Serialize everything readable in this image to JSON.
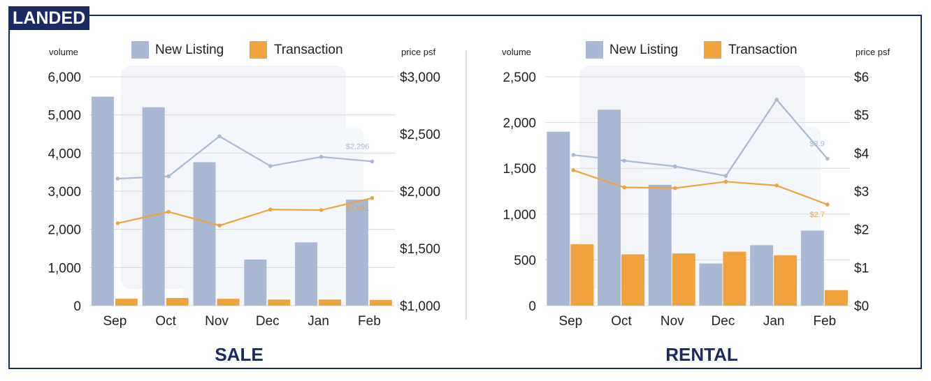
{
  "tag": "LANDED",
  "colors": {
    "new_listing": "#a9b9d3",
    "transaction": "#f0a23e",
    "navy": "#1b2a63"
  },
  "chart_data": [
    {
      "type": "bar",
      "title": "SALE",
      "categories": [
        "Sep",
        "Oct",
        "Nov",
        "Dec",
        "Jan",
        "Feb"
      ],
      "ylabel": "volume",
      "y2label": "price psf",
      "ylim": [
        0,
        6000
      ],
      "yticks": [
        "0",
        "1,000",
        "2,000",
        "3,000",
        "4,000",
        "5,000",
        "6,000"
      ],
      "y2lim": [
        1000,
        3000
      ],
      "y2ticks": [
        "$1,000",
        "$1,500",
        "$2,000",
        "$2,500",
        "$3,000"
      ],
      "legend": [
        "New Listing",
        "Transaction"
      ],
      "legend_position": "top",
      "series": [
        {
          "name": "New Listing",
          "kind": "bar",
          "axis": "left",
          "values": [
            5480,
            5200,
            3760,
            1210,
            1660,
            2780
          ]
        },
        {
          "name": "Transaction",
          "kind": "bar",
          "axis": "left",
          "values": [
            180,
            200,
            180,
            160,
            160,
            150
          ]
        },
        {
          "name": "New Listing",
          "kind": "line",
          "axis": "right",
          "values": [
            2110,
            2130,
            2480,
            2220,
            2300,
            2260
          ],
          "end_label": "$2,296"
        },
        {
          "name": "Transaction",
          "kind": "line",
          "axis": "right",
          "values": [
            1720,
            1820,
            1700,
            1840,
            1835,
            1940
          ],
          "end_label": "$1,951"
        }
      ]
    },
    {
      "type": "bar",
      "title": "RENTAL",
      "categories": [
        "Sep",
        "Oct",
        "Nov",
        "Dec",
        "Jan",
        "Feb"
      ],
      "ylabel": "volume",
      "y2label": "price psf",
      "ylim": [
        0,
        2500
      ],
      "yticks": [
        "0",
        "500",
        "1,000",
        "1,500",
        "2,000",
        "2,500"
      ],
      "y2lim": [
        0,
        6
      ],
      "y2ticks": [
        "$0",
        "$1",
        "$2",
        "$3",
        "$4",
        "$5",
        "$6"
      ],
      "legend": [
        "New Listing",
        "Transaction"
      ],
      "legend_position": "top",
      "series": [
        {
          "name": "New Listing",
          "kind": "bar",
          "axis": "left",
          "values": [
            1900,
            2140,
            1320,
            460,
            660,
            820
          ]
        },
        {
          "name": "Transaction",
          "kind": "bar",
          "axis": "left",
          "values": [
            670,
            560,
            570,
            590,
            550,
            170
          ]
        },
        {
          "name": "New Listing",
          "kind": "line",
          "axis": "right",
          "values": [
            3.95,
            3.8,
            3.65,
            3.4,
            5.4,
            3.85
          ],
          "end_label": "$3.9"
        },
        {
          "name": "Transaction",
          "kind": "line",
          "axis": "right",
          "values": [
            3.55,
            3.1,
            3.08,
            3.25,
            3.15,
            2.65
          ],
          "end_label": "$2.7"
        }
      ]
    }
  ]
}
